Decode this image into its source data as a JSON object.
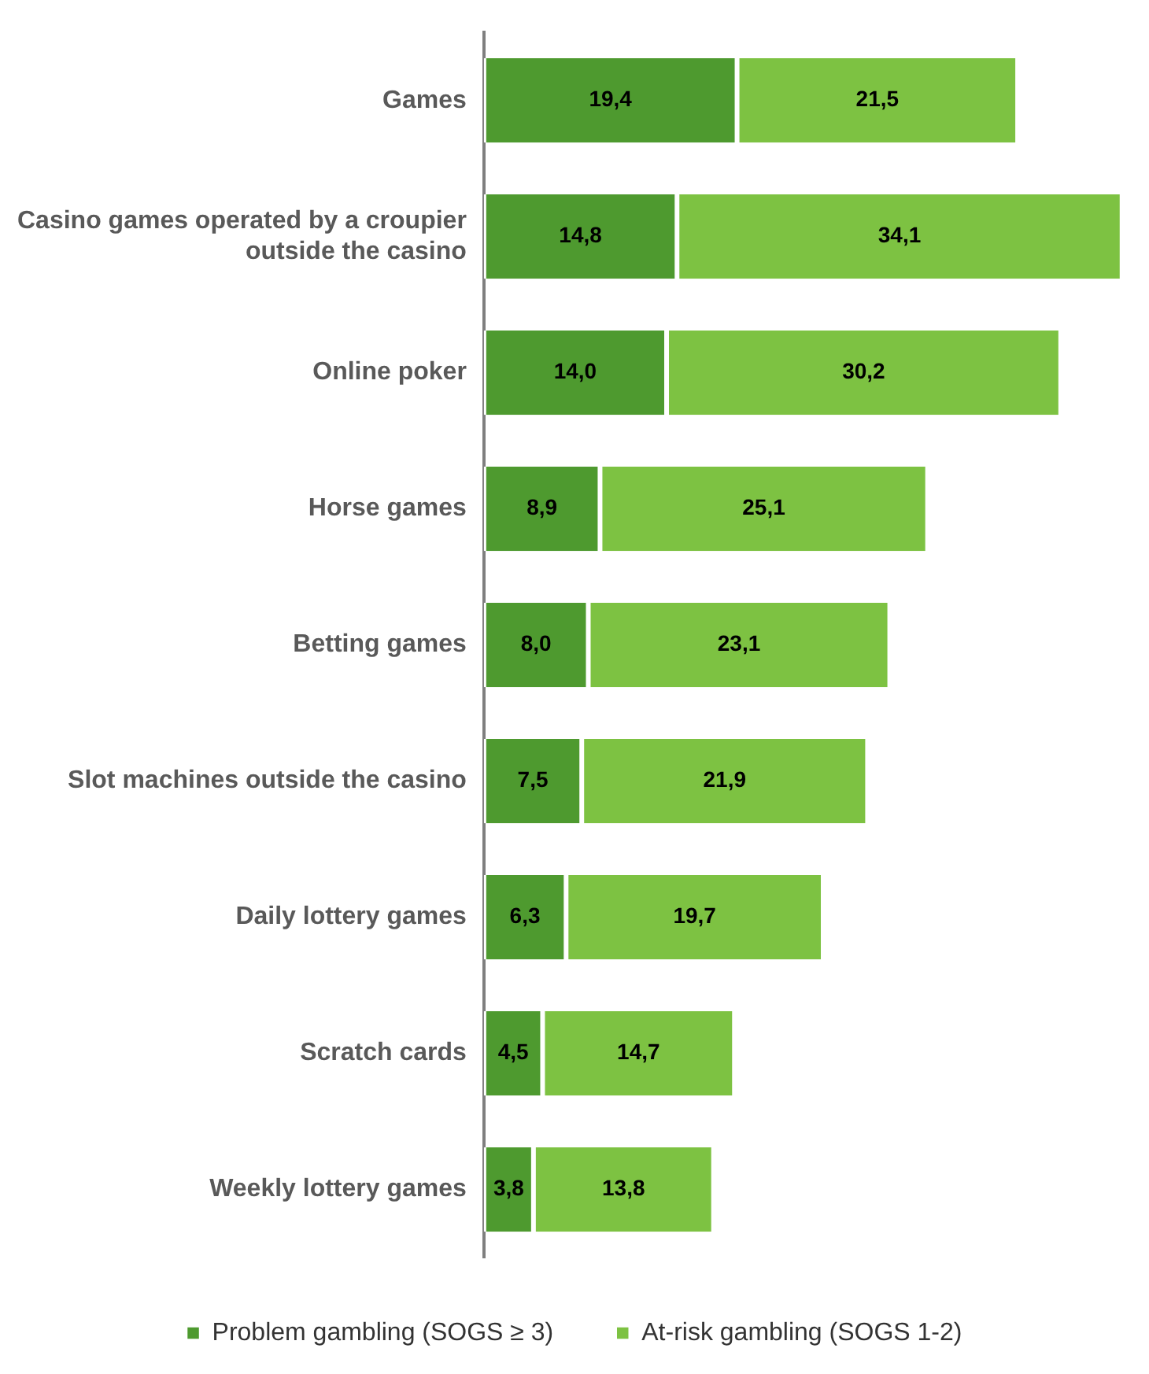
{
  "chart_data": {
    "type": "bar",
    "orientation": "horizontal",
    "stacked": true,
    "legend": "bottom",
    "tick_labels": "y",
    "categories": [
      "Games",
      "Casino games operated by a croupier outside the casino",
      "Online poker",
      "Horse games",
      "Betting games",
      "Slot machines outside the casino",
      "Daily lottery games",
      "Scratch cards",
      "Weekly lottery games"
    ],
    "series": [
      {
        "name": "Problem gambling (SOGS ≥ 3)",
        "color": "#4e9a2f",
        "values": [
          19.4,
          14.8,
          14.0,
          8.9,
          8.0,
          7.5,
          6.3,
          4.5,
          3.8
        ],
        "value_labels": [
          "19,4",
          "14,8",
          "14,0",
          "8,9",
          "8,0",
          "7,5",
          "6,3",
          "4,5",
          "3,8"
        ]
      },
      {
        "name": "At-risk gambling (SOGS 1-2)",
        "color": "#7dc242",
        "values": [
          21.5,
          34.1,
          30.2,
          25.1,
          23.1,
          21.9,
          19.7,
          14.7,
          13.8
        ],
        "value_labels": [
          "21,5",
          "34,1",
          "30,2",
          "25,1",
          "23,1",
          "21,9",
          "19,7",
          "14,7",
          "13,8"
        ]
      }
    ]
  }
}
